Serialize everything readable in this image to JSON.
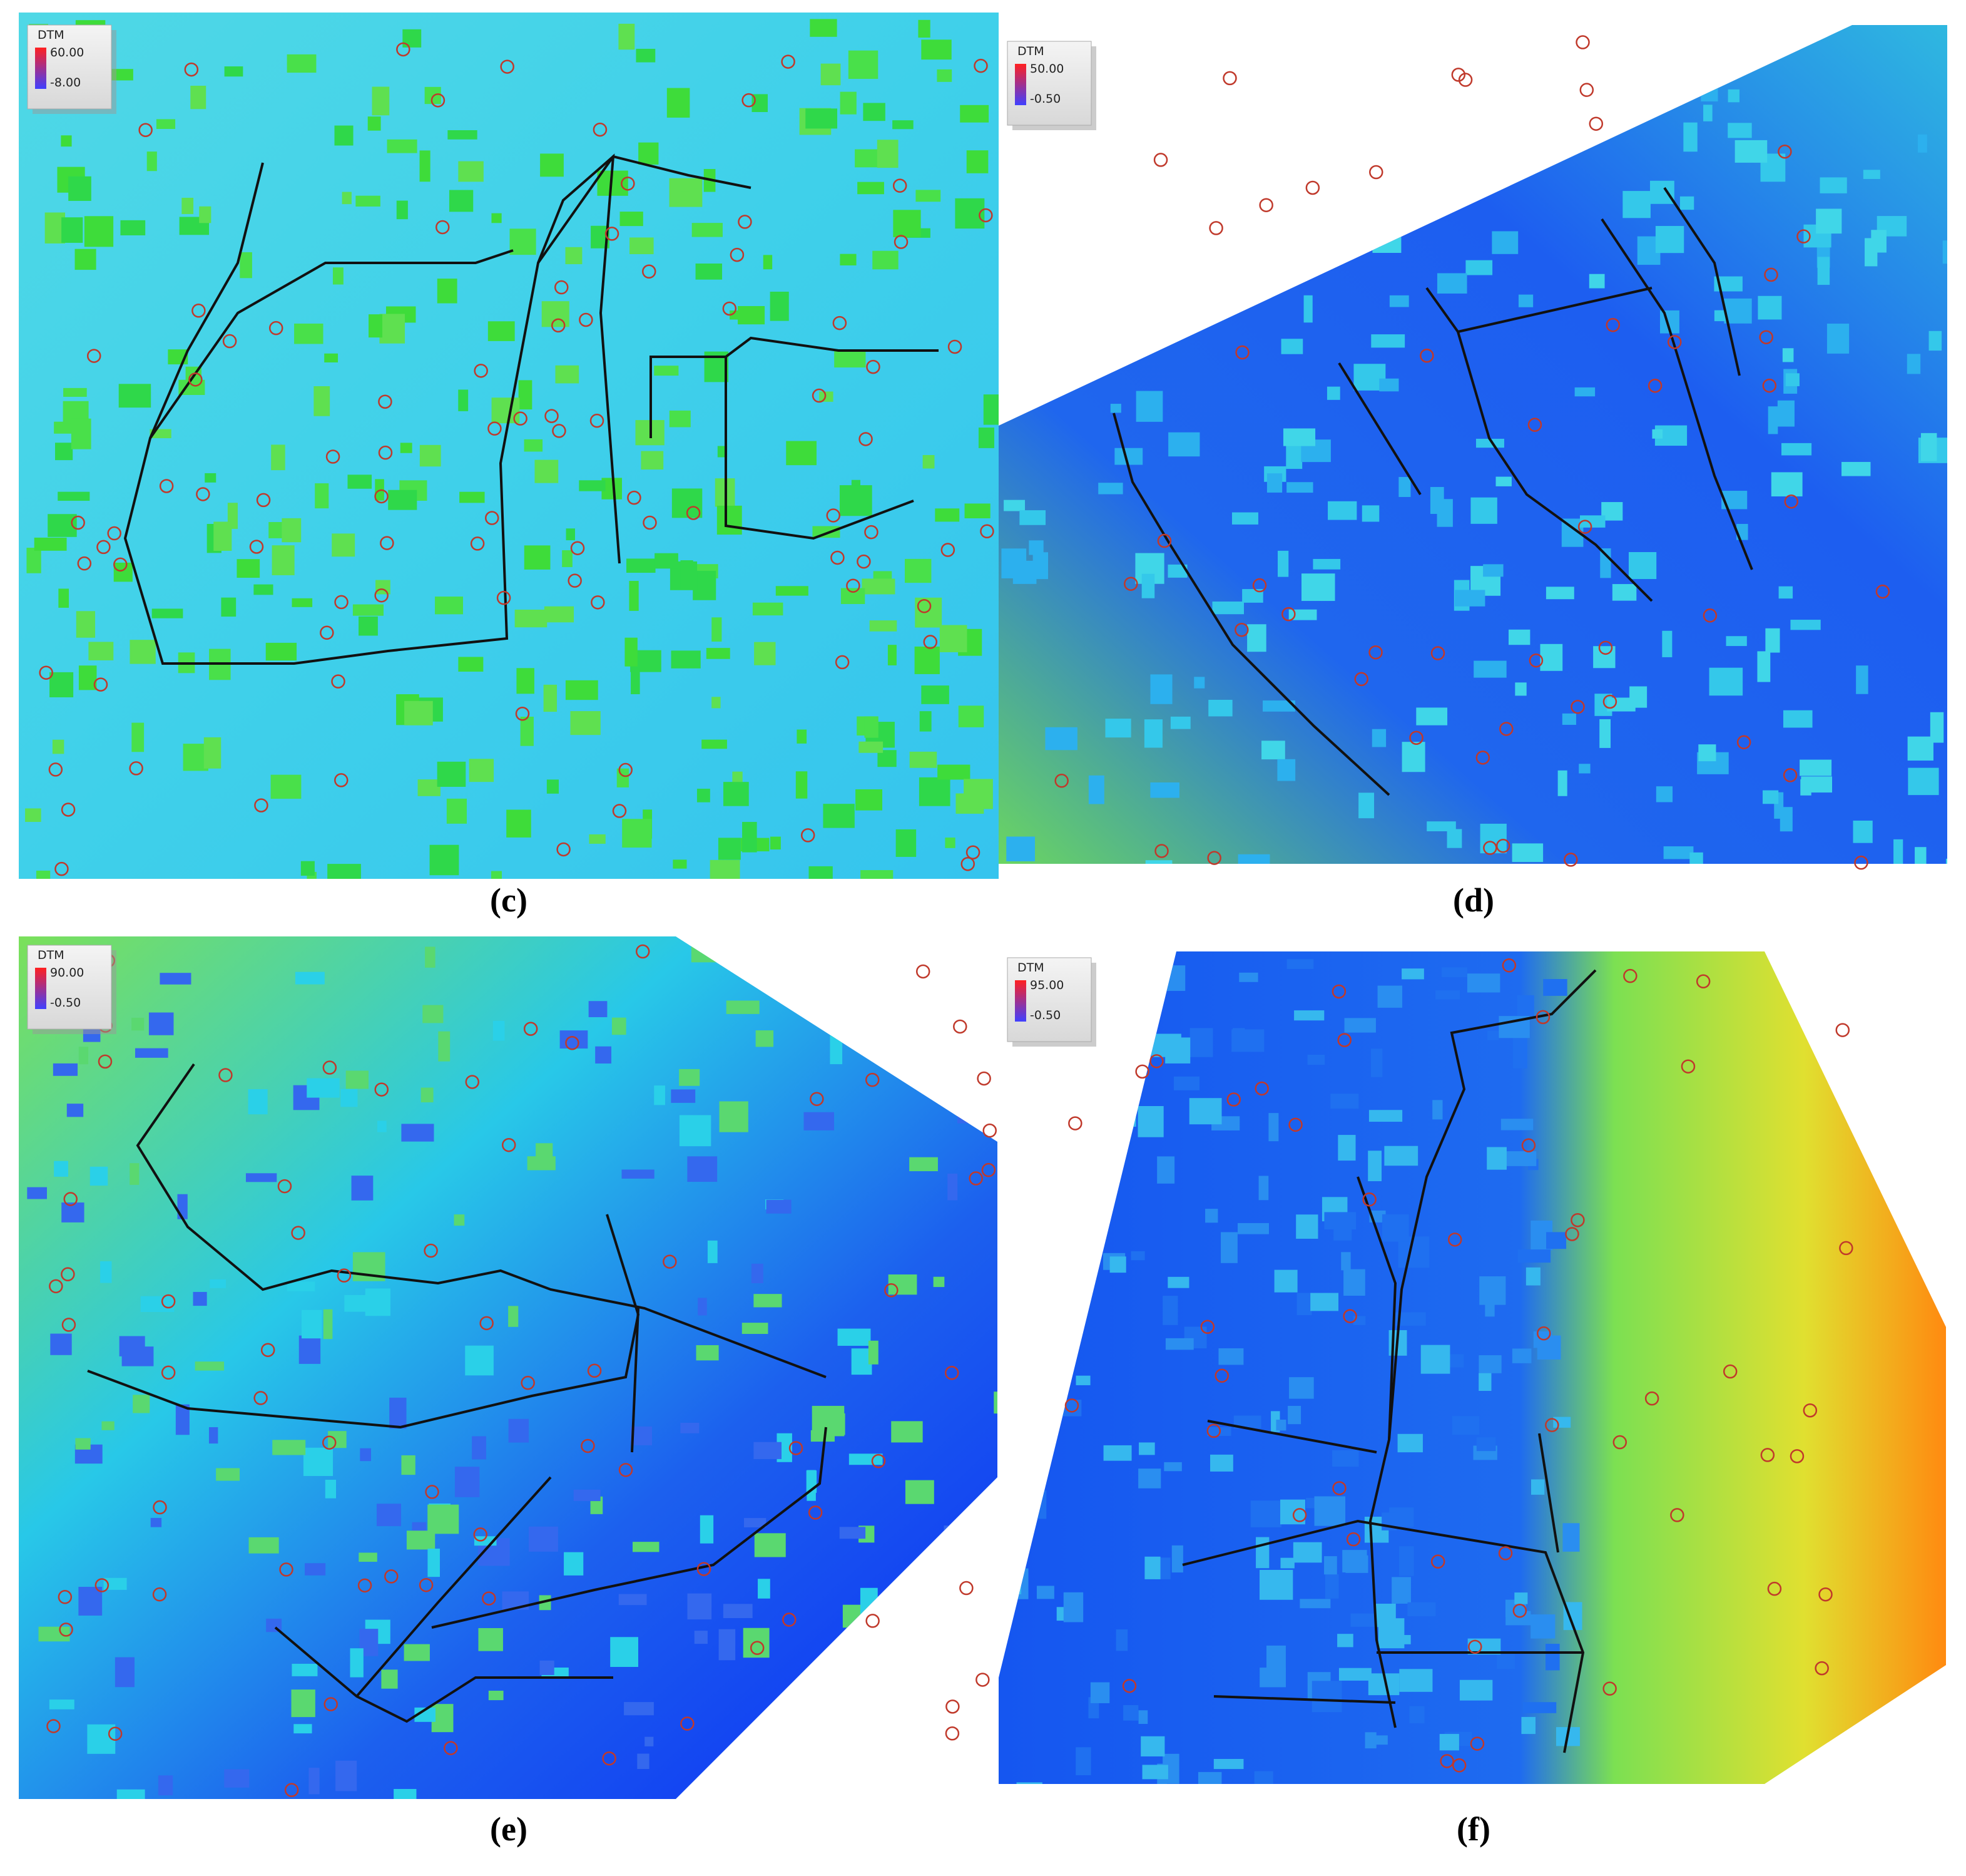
{
  "panels": [
    {
      "label": "(c)",
      "legend": {
        "title": "DTM",
        "max": "60.00",
        "min": "-8.00"
      }
    },
    {
      "label": "(d)",
      "legend": {
        "title": "DTM",
        "max": "50.00",
        "min": "-0.50"
      }
    },
    {
      "label": "(e)",
      "legend": {
        "title": "DTM",
        "max": "90.00",
        "min": "-0.50"
      }
    },
    {
      "label": "(f)",
      "legend": {
        "title": "DTM",
        "max": "95.00",
        "min": "-0.50"
      }
    }
  ]
}
